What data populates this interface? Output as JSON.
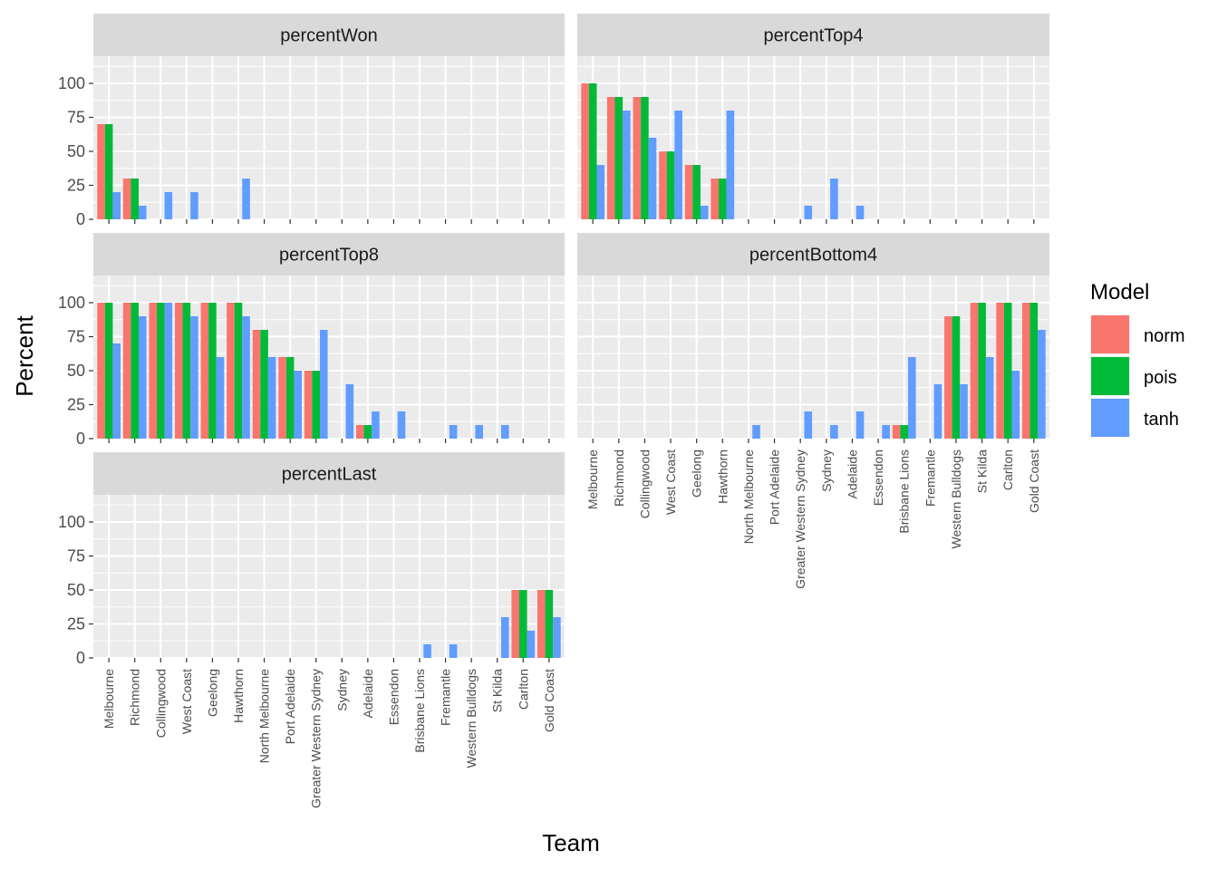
{
  "chart_data": {
    "type": "bar",
    "xlabel": "Team",
    "ylabel": "Percent",
    "ylim": [
      0,
      120
    ],
    "yticks": [
      0,
      25,
      50,
      75,
      100
    ],
    "legend": {
      "title": "Model",
      "placement": "right"
    },
    "series_names": [
      "norm",
      "pois",
      "tanh"
    ],
    "colors": {
      "norm": "#F8766D",
      "pois": "#00BA38",
      "tanh": "#619CFF"
    },
    "panel_background": "#EBEBEB",
    "strip_background": "#D9D9D9",
    "grid": true,
    "categories": [
      "Melbourne",
      "Richmond",
      "Collingwood",
      "West Coast",
      "Geelong",
      "Hawthorn",
      "North Melbourne",
      "Port Adelaide",
      "Greater Western Sydney",
      "Sydney",
      "Adelaide",
      "Essendon",
      "Brisbane Lions",
      "Fremantle",
      "Western Bulldogs",
      "St Kilda",
      "Carlton",
      "Gold Coast"
    ],
    "panels": [
      {
        "title": "percentWon",
        "series": [
          {
            "name": "norm",
            "values": [
              70,
              30,
              0,
              0,
              0,
              0,
              0,
              0,
              0,
              0,
              0,
              0,
              0,
              0,
              0,
              0,
              0,
              0
            ]
          },
          {
            "name": "pois",
            "values": [
              70,
              30,
              0,
              0,
              0,
              0,
              0,
              0,
              0,
              0,
              0,
              0,
              0,
              0,
              0,
              0,
              0,
              0
            ]
          },
          {
            "name": "tanh",
            "values": [
              20,
              10,
              20,
              20,
              0,
              30,
              0,
              0,
              0,
              0,
              0,
              0,
              0,
              0,
              0,
              0,
              0,
              0
            ]
          }
        ]
      },
      {
        "title": "percentTop4",
        "series": [
          {
            "name": "norm",
            "values": [
              100,
              90,
              90,
              50,
              40,
              30,
              0,
              0,
              0,
              0,
              0,
              0,
              0,
              0,
              0,
              0,
              0,
              0
            ]
          },
          {
            "name": "pois",
            "values": [
              100,
              90,
              90,
              50,
              40,
              30,
              0,
              0,
              0,
              0,
              0,
              0,
              0,
              0,
              0,
              0,
              0,
              0
            ]
          },
          {
            "name": "tanh",
            "values": [
              40,
              80,
              60,
              80,
              10,
              80,
              0,
              0,
              10,
              30,
              10,
              0,
              0,
              0,
              0,
              0,
              0,
              0
            ]
          }
        ]
      },
      {
        "title": "percentTop8",
        "series": [
          {
            "name": "norm",
            "values": [
              100,
              100,
              100,
              100,
              100,
              100,
              80,
              60,
              50,
              0,
              10,
              0,
              0,
              0,
              0,
              0,
              0,
              0
            ]
          },
          {
            "name": "pois",
            "values": [
              100,
              100,
              100,
              100,
              100,
              100,
              80,
              60,
              50,
              0,
              10,
              0,
              0,
              0,
              0,
              0,
              0,
              0
            ]
          },
          {
            "name": "tanh",
            "values": [
              70,
              90,
              100,
              90,
              60,
              90,
              60,
              50,
              80,
              40,
              20,
              20,
              0,
              10,
              10,
              10,
              0,
              0
            ]
          }
        ]
      },
      {
        "title": "percentBottom4",
        "series": [
          {
            "name": "norm",
            "values": [
              0,
              0,
              0,
              0,
              0,
              0,
              0,
              0,
              0,
              0,
              0,
              0,
              10,
              0,
              90,
              100,
              100,
              100
            ]
          },
          {
            "name": "pois",
            "values": [
              0,
              0,
              0,
              0,
              0,
              0,
              0,
              0,
              0,
              0,
              0,
              0,
              10,
              0,
              90,
              100,
              100,
              100
            ]
          },
          {
            "name": "tanh",
            "values": [
              0,
              0,
              0,
              0,
              0,
              0,
              10,
              0,
              20,
              10,
              20,
              10,
              60,
              40,
              40,
              60,
              50,
              80
            ]
          }
        ]
      },
      {
        "title": "percentLast",
        "series": [
          {
            "name": "norm",
            "values": [
              0,
              0,
              0,
              0,
              0,
              0,
              0,
              0,
              0,
              0,
              0,
              0,
              0,
              0,
              0,
              0,
              50,
              50
            ]
          },
          {
            "name": "pois",
            "values": [
              0,
              0,
              0,
              0,
              0,
              0,
              0,
              0,
              0,
              0,
              0,
              0,
              0,
              0,
              0,
              0,
              50,
              50
            ]
          },
          {
            "name": "tanh",
            "values": [
              0,
              0,
              0,
              0,
              0,
              0,
              0,
              0,
              0,
              0,
              0,
              0,
              10,
              10,
              0,
              30,
              20,
              30
            ]
          }
        ]
      }
    ]
  }
}
